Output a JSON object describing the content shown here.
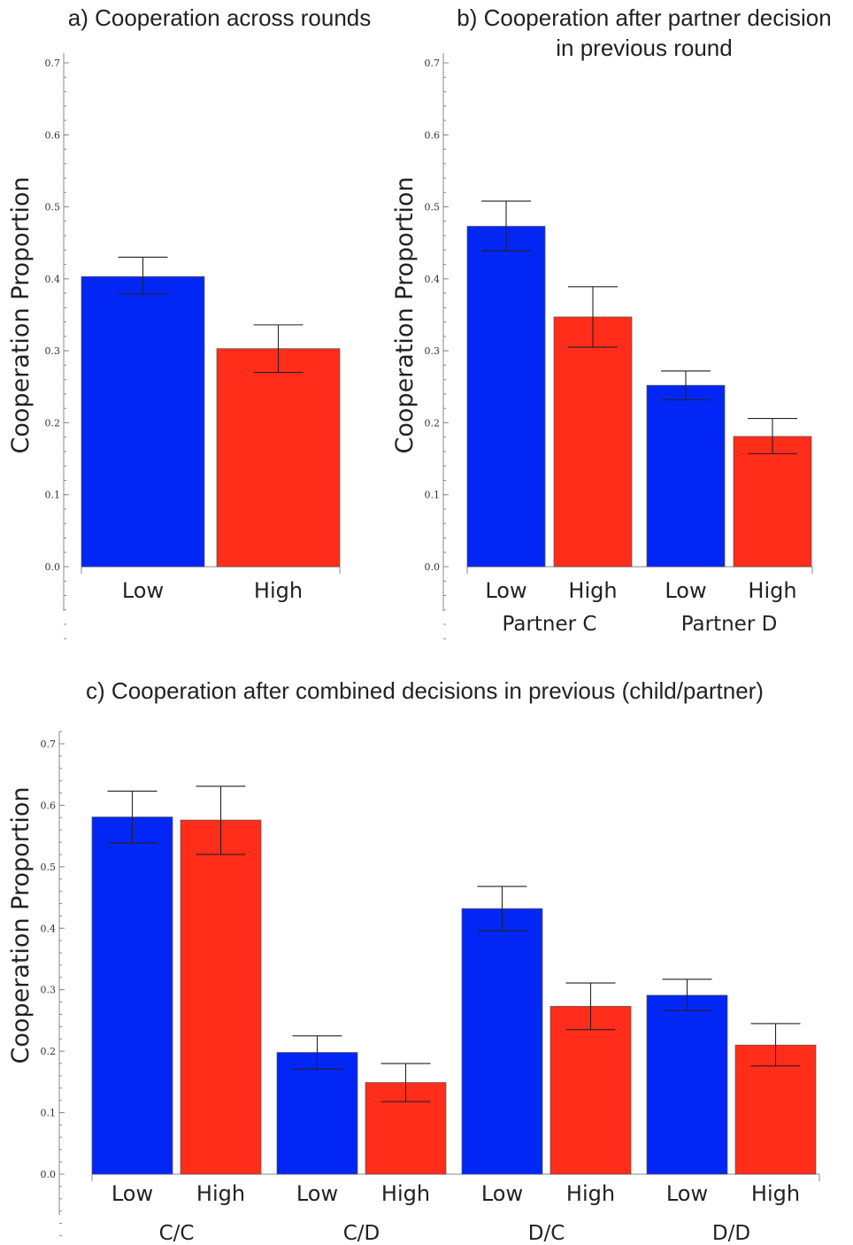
{
  "chart_data": [
    {
      "type": "bar",
      "title": "a) Cooperation across rounds",
      "ylabel": "Cooperation Proportion",
      "xlabel": "",
      "ylim": [
        0,
        0.7
      ],
      "yticks": [
        "0.0",
        "0.1",
        "0.2",
        "0.3",
        "0.4",
        "0.5",
        "0.6",
        "0.7"
      ],
      "groups": [
        {
          "label": "",
          "bars": [
            {
              "label": "Low",
              "value": 0.403,
              "err_low": 0.379,
              "err_high": 0.43,
              "color": "#0227F5"
            },
            {
              "label": "High",
              "value": 0.303,
              "err_low": 0.27,
              "err_high": 0.336,
              "color": "#FF2D1A"
            }
          ]
        }
      ],
      "grid": false
    },
    {
      "type": "bar",
      "title": "b) Cooperation after partner decision",
      "title_line2": "in previous round",
      "ylabel": "Cooperation Proportion",
      "xlabel": "",
      "ylim": [
        0,
        0.7
      ],
      "yticks": [
        "0.0",
        "0.1",
        "0.2",
        "0.3",
        "0.4",
        "0.5",
        "0.6",
        "0.7"
      ],
      "groups": [
        {
          "label": "Partner C",
          "bars": [
            {
              "label": "Low",
              "value": 0.473,
              "err_low": 0.439,
              "err_high": 0.508,
              "color": "#0227F5"
            },
            {
              "label": "High",
              "value": 0.347,
              "err_low": 0.305,
              "err_high": 0.389,
              "color": "#FF2D1A"
            }
          ]
        },
        {
          "label": "Partner D",
          "bars": [
            {
              "label": "Low",
              "value": 0.252,
              "err_low": 0.232,
              "err_high": 0.272,
              "color": "#0227F5"
            },
            {
              "label": "High",
              "value": 0.181,
              "err_low": 0.157,
              "err_high": 0.206,
              "color": "#FF2D1A"
            }
          ]
        }
      ],
      "grid": false
    },
    {
      "type": "bar",
      "title": "c) Cooperation after combined decisions in previous (child/partner)",
      "ylabel": "Cooperation Proportion",
      "xlabel": "",
      "ylim": [
        0,
        0.7
      ],
      "yticks": [
        "0.0",
        "0.1",
        "0.2",
        "0.3",
        "0.4",
        "0.5",
        "0.6",
        "0.7"
      ],
      "groups": [
        {
          "label": "C/C",
          "bars": [
            {
              "label": "Low",
              "value": 0.581,
              "err_low": 0.539,
              "err_high": 0.623,
              "color": "#0227F5"
            },
            {
              "label": "High",
              "value": 0.576,
              "err_low": 0.52,
              "err_high": 0.631,
              "color": "#FF2D1A"
            }
          ]
        },
        {
          "label": "C/D",
          "bars": [
            {
              "label": "Low",
              "value": 0.198,
              "err_low": 0.171,
              "err_high": 0.225,
              "color": "#0227F5"
            },
            {
              "label": "High",
              "value": 0.149,
              "err_low": 0.118,
              "err_high": 0.18,
              "color": "#FF2D1A"
            }
          ]
        },
        {
          "label": "D/C",
          "bars": [
            {
              "label": "Low",
              "value": 0.432,
              "err_low": 0.396,
              "err_high": 0.468,
              "color": "#0227F5"
            },
            {
              "label": "High",
              "value": 0.273,
              "err_low": 0.235,
              "err_high": 0.311,
              "color": "#FF2D1A"
            }
          ]
        },
        {
          "label": "D/D",
          "bars": [
            {
              "label": "Low",
              "value": 0.291,
              "err_low": 0.266,
              "err_high": 0.317,
              "color": "#0227F5"
            },
            {
              "label": "High",
              "value": 0.21,
              "err_low": 0.176,
              "err_high": 0.245,
              "color": "#FF2D1A"
            }
          ]
        }
      ],
      "grid": false
    }
  ]
}
